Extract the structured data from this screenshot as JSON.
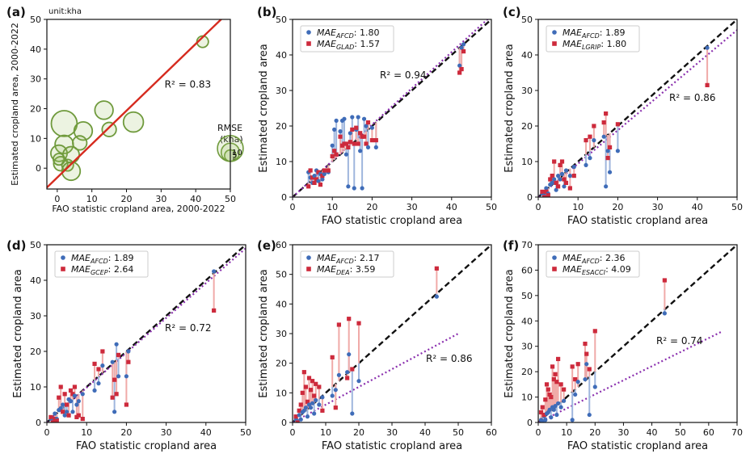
{
  "chart_data": [
    {
      "panel": "(a)",
      "type": "scatter",
      "unit_note": "unit:kha",
      "xlabel": "FAO statistic cropland area, 2000-2022",
      "ylabel": "Estimated cropland area, 2000-2022",
      "xlim": [
        -3,
        50
      ],
      "ylim": [
        -7,
        50
      ],
      "xticks": [
        0,
        10,
        20,
        30,
        40,
        50
      ],
      "yticks": [
        0,
        10,
        20,
        30,
        40,
        50
      ],
      "r2_label": "R² = 0.83",
      "fit_line": [
        [
          -3,
          -6.5
        ],
        [
          50,
          53
        ]
      ],
      "bubble_color": "#6f9a3c",
      "line_color": "#d62b1f",
      "points": [
        {
          "x": 2,
          "y": 15,
          "rmse": 10
        },
        {
          "x": 13.5,
          "y": 19.5,
          "rmse": 5
        },
        {
          "x": 22,
          "y": 15.5,
          "rmse": 6
        },
        {
          "x": 7.5,
          "y": 12.5,
          "rmse": 5
        },
        {
          "x": 15,
          "y": 13,
          "rmse": 3
        },
        {
          "x": 2,
          "y": 8,
          "rmse": 5
        },
        {
          "x": 6.5,
          "y": 8.5,
          "rmse": 3
        },
        {
          "x": 0.5,
          "y": 5,
          "rmse": 4
        },
        {
          "x": 4,
          "y": 4.5,
          "rmse": 4
        },
        {
          "x": 1,
          "y": 1.5,
          "rmse": 3
        },
        {
          "x": 3,
          "y": 1,
          "rmse": 2
        },
        {
          "x": 4,
          "y": -1,
          "rmse": 5
        },
        {
          "x": 0.5,
          "y": 3,
          "rmse": 2
        },
        {
          "x": 42,
          "y": 42.5,
          "rmse": 2
        }
      ],
      "size_legend": {
        "title": "RMSE (kha)",
        "values": [
          2,
          5,
          10
        ]
      }
    },
    {
      "panel": "(b)",
      "type": "scatter",
      "xlabel": "FAO statistic cropland area",
      "ylabel": "Estimated cropland area",
      "xlim": [
        0,
        50
      ],
      "ylim": [
        0,
        50
      ],
      "xticks": [
        0,
        10,
        20,
        30,
        40,
        50
      ],
      "yticks": [
        0,
        10,
        20,
        30,
        40,
        50
      ],
      "r2_label": "R² = 0.94",
      "fit_line": [
        [
          0,
          0
        ],
        [
          50,
          51
        ]
      ],
      "legend": [
        {
          "name": "MAE",
          "sub": "AFCD",
          "value": ": 1.80"
        },
        {
          "name": "MAE",
          "sub": "GLAD",
          "value": ": 1.57"
        }
      ],
      "pairs": [
        [
          4,
          7,
          3
        ],
        [
          4.5,
          5.5,
          7.5
        ],
        [
          5,
          4,
          5.5
        ],
        [
          5.5,
          6,
          4
        ],
        [
          6,
          7.5,
          5
        ],
        [
          6.5,
          4.5,
          7
        ],
        [
          7,
          6.5,
          3.5
        ],
        [
          7.5,
          5,
          6
        ],
        [
          8,
          6.5,
          7.5
        ],
        [
          9,
          7,
          7.5
        ],
        [
          10,
          14.5,
          11.5
        ],
        [
          10.5,
          19,
          13
        ],
        [
          11,
          21.5,
          12
        ],
        [
          12,
          18.5,
          17
        ],
        [
          12.5,
          21.5,
          14.5
        ],
        [
          13,
          22,
          15
        ],
        [
          13.5,
          12,
          15
        ],
        [
          14,
          3,
          14
        ],
        [
          14.5,
          18,
          15.5
        ],
        [
          15,
          22.5,
          19
        ],
        [
          15.5,
          2.5,
          15
        ],
        [
          16,
          19,
          19.5
        ],
        [
          16.5,
          22.5,
          15
        ],
        [
          17,
          13,
          18
        ],
        [
          17.5,
          2.5,
          17
        ],
        [
          18,
          22,
          17
        ],
        [
          18.5,
          20,
          15
        ],
        [
          19,
          14,
          21
        ],
        [
          20,
          19.5,
          16
        ],
        [
          21,
          14,
          16
        ],
        [
          42,
          37,
          35
        ],
        [
          42.5,
          42,
          36
        ],
        [
          43,
          43,
          41
        ]
      ]
    },
    {
      "panel": "(c)",
      "type": "scatter",
      "xlabel": "FAO statistic cropland area",
      "ylabel": "Estimated cropland area",
      "xlim": [
        0,
        50
      ],
      "ylim": [
        0,
        50
      ],
      "xticks": [
        0,
        10,
        20,
        30,
        40,
        50
      ],
      "yticks": [
        0,
        10,
        20,
        30,
        40,
        50
      ],
      "r2_label": "R² = 0.86",
      "fit_line": [
        [
          0,
          0
        ],
        [
          50,
          47
        ]
      ],
      "legend": [
        {
          "name": "MAE",
          "sub": "AFCD",
          "value": ": 1.89"
        },
        {
          "name": "MAE",
          "sub": "LGRIP",
          "value": ": 1.80"
        }
      ],
      "pairs": [
        [
          1,
          1,
          1.5
        ],
        [
          1.5,
          0.5,
          0
        ],
        [
          2,
          2.5,
          1.5
        ],
        [
          2.5,
          1,
          0.5
        ],
        [
          3,
          3.5,
          5
        ],
        [
          3.5,
          4,
          6
        ],
        [
          4,
          5,
          10
        ],
        [
          4.5,
          2,
          4
        ],
        [
          5,
          6,
          3
        ],
        [
          5.5,
          5,
          9
        ],
        [
          6,
          6.5,
          10
        ],
        [
          6.5,
          3,
          5
        ],
        [
          7,
          7.5,
          4
        ],
        [
          8,
          6,
          2.5
        ],
        [
          9,
          8.5,
          6
        ],
        [
          12,
          9,
          16
        ],
        [
          13,
          11,
          17
        ],
        [
          14,
          16,
          20
        ],
        [
          16.5,
          17,
          21
        ],
        [
          17,
          3,
          23.5
        ],
        [
          17.5,
          13,
          11
        ],
        [
          18,
          7,
          14
        ],
        [
          20,
          13,
          20.5
        ],
        [
          42.5,
          42,
          31.5
        ]
      ]
    },
    {
      "panel": "(d)",
      "type": "scatter",
      "xlabel": "FAO statistic cropland area",
      "ylabel": "Estimated cropland area",
      "xlim": [
        0,
        50
      ],
      "ylim": [
        0,
        50
      ],
      "xticks": [
        0,
        10,
        20,
        30,
        40,
        50
      ],
      "yticks": [
        0,
        10,
        20,
        30,
        40,
        50
      ],
      "r2_label": "R² = 0.72",
      "fit_line": [
        [
          0,
          0
        ],
        [
          50,
          49
        ]
      ],
      "legend": [
        {
          "name": "MAE",
          "sub": "AFCD",
          "value": ": 1.89"
        },
        {
          "name": "MAE",
          "sub": "GCEP",
          "value": ": 2.64"
        }
      ],
      "pairs": [
        [
          1,
          1,
          1.5
        ],
        [
          1.5,
          0.5,
          0
        ],
        [
          2,
          2.5,
          1
        ],
        [
          2.5,
          1,
          0.5
        ],
        [
          3,
          3.5,
          7
        ],
        [
          3.5,
          4,
          10
        ],
        [
          4,
          5,
          3
        ],
        [
          4.5,
          2,
          8
        ],
        [
          5,
          3,
          5
        ],
        [
          5.5,
          6.5,
          2
        ],
        [
          6,
          6,
          9
        ],
        [
          6.5,
          3,
          8
        ],
        [
          7,
          7.5,
          10
        ],
        [
          7.5,
          5,
          1.5
        ],
        [
          8,
          6,
          2
        ],
        [
          9,
          8,
          1
        ],
        [
          12,
          9,
          16.5
        ],
        [
          13,
          11,
          15
        ],
        [
          14,
          16,
          20
        ],
        [
          16.5,
          17,
          7
        ],
        [
          17,
          3,
          12
        ],
        [
          17.5,
          22,
          8
        ],
        [
          18,
          13,
          19
        ],
        [
          20,
          13,
          5
        ],
        [
          20.5,
          20,
          17
        ],
        [
          42,
          42.5,
          31.5
        ]
      ]
    },
    {
      "panel": "(e)",
      "type": "scatter",
      "xlabel": "FAO statistic cropland area",
      "ylabel": "Estimated cropland area",
      "xlim": [
        0,
        60
      ],
      "ylim": [
        0,
        60
      ],
      "xticks": [
        0,
        10,
        20,
        30,
        40,
        50,
        60
      ],
      "yticks": [
        0,
        10,
        20,
        30,
        40,
        50,
        60
      ],
      "r2_label": "R² = 0.86",
      "fit_line": [
        [
          0,
          0
        ],
        [
          50,
          30
        ]
      ],
      "legend": [
        {
          "name": "MAE",
          "sub": "AFCD",
          "value": ": 2.17"
        },
        {
          "name": "MAE",
          "sub": "DEA",
          "value": ": 3.59"
        }
      ],
      "pairs": [
        [
          1,
          1,
          2
        ],
        [
          1.5,
          0.5,
          0
        ],
        [
          2,
          2.5,
          4
        ],
        [
          2.5,
          1,
          6
        ],
        [
          3,
          3.5,
          10
        ],
        [
          3.5,
          4,
          17
        ],
        [
          4,
          5,
          12
        ],
        [
          4.5,
          2,
          7
        ],
        [
          5,
          6,
          15
        ],
        [
          5.5,
          5,
          11
        ],
        [
          6,
          6.5,
          14
        ],
        [
          6.5,
          3,
          9
        ],
        [
          7,
          7.5,
          13
        ],
        [
          8,
          6,
          12
        ],
        [
          9,
          8.5,
          4
        ],
        [
          12,
          9,
          22
        ],
        [
          13,
          11,
          5
        ],
        [
          14,
          16,
          33
        ],
        [
          16.5,
          17,
          15
        ],
        [
          17,
          23,
          35
        ],
        [
          18,
          3,
          18
        ],
        [
          20,
          14,
          33.5
        ],
        [
          43.5,
          42.5,
          52
        ]
      ]
    },
    {
      "panel": "(f)",
      "type": "scatter",
      "xlabel": "FAO statistic cropland area",
      "ylabel": "Estimated cropland area",
      "xlim": [
        0,
        70
      ],
      "ylim": [
        0,
        70
      ],
      "xticks": [
        0,
        10,
        20,
        30,
        40,
        50,
        60,
        70
      ],
      "yticks": [
        0,
        10,
        20,
        30,
        40,
        50,
        60,
        70
      ],
      "r2_label": "R² = 0.74",
      "fit_line": [
        [
          0,
          0
        ],
        [
          65,
          36
        ]
      ],
      "legend": [
        {
          "name": "MAE",
          "sub": "AFCD",
          "value": ": 2.36"
        },
        {
          "name": "MAE",
          "sub": "ESACCI",
          "value": ": 4.09"
        }
      ],
      "pairs": [
        [
          1,
          1,
          4
        ],
        [
          1.5,
          0.5,
          6
        ],
        [
          2,
          2.5,
          3
        ],
        [
          2.5,
          1,
          9
        ],
        [
          3,
          3.5,
          15
        ],
        [
          3.5,
          4,
          13
        ],
        [
          4,
          5,
          11
        ],
        [
          4.5,
          2,
          10
        ],
        [
          5,
          6,
          22
        ],
        [
          5.5,
          5,
          17
        ],
        [
          6,
          6.5,
          19
        ],
        [
          6.5,
          3,
          16
        ],
        [
          7,
          7.5,
          25
        ],
        [
          8,
          6,
          15
        ],
        [
          9,
          8.5,
          13
        ],
        [
          12,
          1,
          22
        ],
        [
          13,
          11,
          17
        ],
        [
          14,
          16,
          23
        ],
        [
          16.5,
          17,
          31
        ],
        [
          17,
          23,
          27
        ],
        [
          18,
          3,
          21
        ],
        [
          20,
          14,
          36
        ],
        [
          44.5,
          43,
          56
        ]
      ]
    }
  ]
}
